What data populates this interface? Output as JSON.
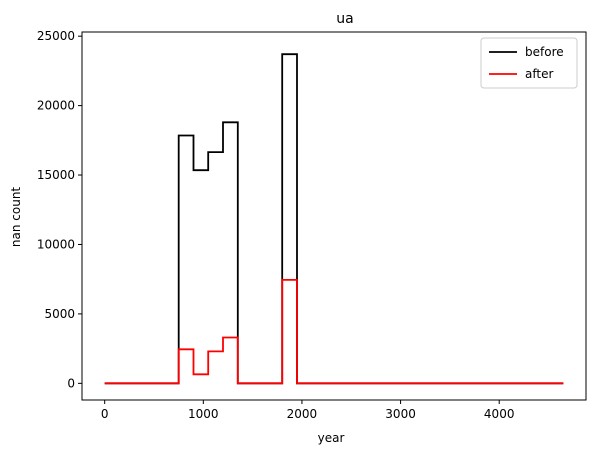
{
  "chart_data": {
    "type": "line",
    "title": "ua",
    "xlabel": "year",
    "ylabel": "nan count",
    "xlim": [
      -230,
      4880
    ],
    "ylim": [
      -1200,
      25300
    ],
    "xticks": [
      0,
      1000,
      2000,
      3000,
      4000
    ],
    "yticks": [
      0,
      5000,
      10000,
      15000,
      20000,
      25000
    ],
    "grid": false,
    "legend_position": "top-right",
    "series": [
      {
        "name": "before",
        "color": "#000000",
        "x": [
          0,
          750,
          750,
          900,
          900,
          1050,
          1050,
          1200,
          1200,
          1350,
          1350,
          1800,
          1800,
          1950,
          1950,
          4650
        ],
        "y": [
          0,
          0,
          17850,
          17850,
          15350,
          15350,
          16650,
          16650,
          18800,
          18800,
          0,
          0,
          23700,
          23700,
          0,
          0
        ]
      },
      {
        "name": "after",
        "color": "#ff0000",
        "x": [
          0,
          750,
          750,
          900,
          900,
          1050,
          1050,
          1200,
          1200,
          1350,
          1350,
          1800,
          1800,
          1950,
          1950,
          4650
        ],
        "y": [
          0,
          0,
          2450,
          2450,
          650,
          650,
          2300,
          2300,
          3300,
          3300,
          0,
          0,
          7450,
          7450,
          0,
          0
        ]
      }
    ]
  }
}
